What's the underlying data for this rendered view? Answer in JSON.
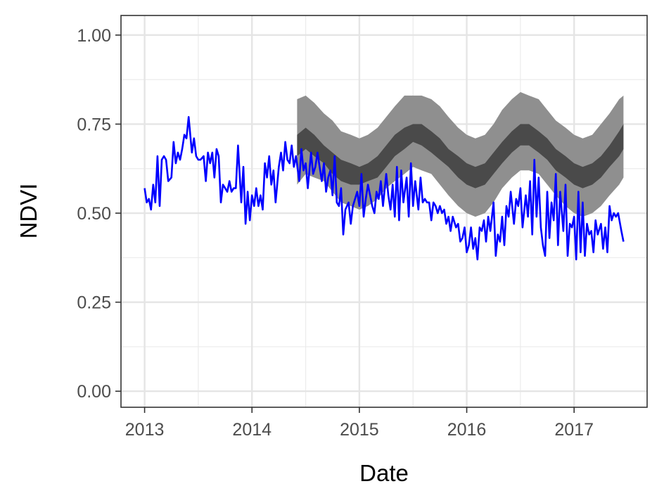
{
  "chart_data": {
    "type": "line",
    "xlabel": "Date",
    "ylabel": "NDVI",
    "xlim": [
      2012.78,
      2017.68
    ],
    "ylim": [
      -0.045,
      1.055
    ],
    "x_ticks": [
      2013,
      2014,
      2015,
      2016,
      2017
    ],
    "x_tick_labels": [
      "2013",
      "2014",
      "2015",
      "2016",
      "2017"
    ],
    "y_ticks": [
      0,
      0.25,
      0.5,
      0.75,
      1
    ],
    "y_tick_labels": [
      "0.00",
      "0.25",
      "0.50",
      "0.75",
      "1.00"
    ],
    "grid": true,
    "legend": "none",
    "series": [
      {
        "kind": "observed",
        "color": "#0000ff",
        "x": [
          2013.0,
          2013.02,
          2013.04,
          2013.06,
          2013.08,
          2013.1,
          2013.12,
          2013.14,
          2013.16,
          2013.18,
          2013.2,
          2013.22,
          2013.25,
          2013.27,
          2013.29,
          2013.31,
          2013.33,
          2013.35,
          2013.37,
          2013.39,
          2013.41,
          2013.44,
          2013.46,
          2013.48,
          2013.5,
          2013.52,
          2013.55,
          2013.57,
          2013.59,
          2013.61,
          2013.63,
          2013.65,
          2013.67,
          2013.69,
          2013.71,
          2013.73,
          2013.75,
          2013.77,
          2013.79,
          2013.81,
          2013.83,
          2013.85,
          2013.87,
          2013.9,
          2013.92,
          2013.94,
          2013.96,
          2013.98,
          2014.0,
          2014.02,
          2014.04,
          2014.06,
          2014.08,
          2014.1,
          2014.12,
          2014.14,
          2014.16,
          2014.18,
          2014.2,
          2014.22,
          2014.25,
          2014.27,
          2014.29,
          2014.31,
          2014.33,
          2014.35,
          2014.37,
          2014.39,
          2014.41,
          2014.44,
          2014.46,
          2014.48,
          2014.5,
          2014.52,
          2014.55,
          2014.57,
          2014.59,
          2014.61,
          2014.63,
          2014.65,
          2014.67,
          2014.69,
          2014.71,
          2014.73,
          2014.75,
          2014.77,
          2014.79,
          2014.81,
          2014.83,
          2014.85,
          2014.87,
          2014.9,
          2014.92,
          2014.94,
          2014.96,
          2014.98,
          2015.0,
          2015.02,
          2015.04,
          2015.06,
          2015.08,
          2015.1,
          2015.12,
          2015.14,
          2015.16,
          2015.18,
          2015.2,
          2015.22,
          2015.25,
          2015.27,
          2015.29,
          2015.31,
          2015.33,
          2015.35,
          2015.37,
          2015.39,
          2015.41,
          2015.44,
          2015.46,
          2015.48,
          2015.5,
          2015.52,
          2015.55,
          2015.57,
          2015.59,
          2015.61,
          2015.63,
          2015.65,
          2015.67,
          2015.69,
          2015.71,
          2015.73,
          2015.75,
          2015.77,
          2015.79,
          2015.81,
          2015.83,
          2015.85,
          2015.87,
          2015.9,
          2015.92,
          2015.94,
          2015.96,
          2015.98,
          2016.0,
          2016.02,
          2016.04,
          2016.06,
          2016.08,
          2016.1,
          2016.12,
          2016.14,
          2016.16,
          2016.18,
          2016.2,
          2016.22,
          2016.25,
          2016.27,
          2016.29,
          2016.31,
          2016.33,
          2016.35,
          2016.37,
          2016.39,
          2016.41,
          2016.44,
          2016.46,
          2016.48,
          2016.5,
          2016.52,
          2016.55,
          2016.57,
          2016.59,
          2016.61,
          2016.63,
          2016.65,
          2016.67,
          2016.69,
          2016.71,
          2016.73,
          2016.75,
          2016.77,
          2016.79,
          2016.81,
          2016.83,
          2016.85,
          2016.87,
          2016.9,
          2016.92,
          2016.94,
          2016.96,
          2016.98,
          2017.0,
          2017.02,
          2017.04,
          2017.06,
          2017.08,
          2017.1,
          2017.12,
          2017.14,
          2017.16,
          2017.18,
          2017.2,
          2017.22,
          2017.25,
          2017.27,
          2017.29,
          2017.31,
          2017.33,
          2017.35,
          2017.37,
          2017.39,
          2017.41,
          2017.44,
          2017.46
        ],
        "y": [
          0.57,
          0.53,
          0.54,
          0.51,
          0.58,
          0.53,
          0.66,
          0.52,
          0.65,
          0.66,
          0.65,
          0.59,
          0.6,
          0.7,
          0.64,
          0.67,
          0.65,
          0.68,
          0.72,
          0.71,
          0.77,
          0.67,
          0.71,
          0.66,
          0.65,
          0.65,
          0.66,
          0.59,
          0.67,
          0.64,
          0.67,
          0.6,
          0.68,
          0.66,
          0.53,
          0.58,
          0.57,
          0.56,
          0.59,
          0.56,
          0.57,
          0.57,
          0.69,
          0.53,
          0.63,
          0.47,
          0.56,
          0.48,
          0.55,
          0.52,
          0.57,
          0.52,
          0.55,
          0.51,
          0.64,
          0.6,
          0.66,
          0.58,
          0.62,
          0.53,
          0.63,
          0.67,
          0.62,
          0.7,
          0.65,
          0.64,
          0.69,
          0.63,
          0.66,
          0.59,
          0.68,
          0.62,
          0.64,
          0.57,
          0.67,
          0.61,
          0.63,
          0.67,
          0.63,
          0.59,
          0.64,
          0.56,
          0.6,
          0.62,
          0.55,
          0.66,
          0.53,
          0.52,
          0.57,
          0.44,
          0.51,
          0.53,
          0.47,
          0.52,
          0.54,
          0.56,
          0.52,
          0.61,
          0.49,
          0.54,
          0.58,
          0.55,
          0.52,
          0.5,
          0.56,
          0.54,
          0.59,
          0.52,
          0.61,
          0.55,
          0.51,
          0.58,
          0.49,
          0.63,
          0.48,
          0.62,
          0.53,
          0.6,
          0.49,
          0.64,
          0.52,
          0.59,
          0.51,
          0.6,
          0.53,
          0.54,
          0.53,
          0.53,
          0.48,
          0.53,
          0.52,
          0.5,
          0.52,
          0.5,
          0.51,
          0.47,
          0.49,
          0.45,
          0.49,
          0.46,
          0.47,
          0.42,
          0.43,
          0.46,
          0.39,
          0.41,
          0.46,
          0.4,
          0.43,
          0.37,
          0.46,
          0.45,
          0.48,
          0.42,
          0.49,
          0.45,
          0.53,
          0.38,
          0.44,
          0.42,
          0.49,
          0.41,
          0.52,
          0.49,
          0.56,
          0.47,
          0.54,
          0.52,
          0.57,
          0.46,
          0.55,
          0.49,
          0.59,
          0.44,
          0.65,
          0.49,
          0.6,
          0.46,
          0.41,
          0.38,
          0.56,
          0.43,
          0.53,
          0.48,
          0.61,
          0.41,
          0.56,
          0.45,
          0.58,
          0.38,
          0.47,
          0.46,
          0.49,
          0.37,
          0.56,
          0.39,
          0.53,
          0.38,
          0.47,
          0.44,
          0.45,
          0.39,
          0.48,
          0.44,
          0.47,
          0.4,
          0.46,
          0.39,
          0.52,
          0.48,
          0.5,
          0.49,
          0.5,
          0.45,
          0.42
        ]
      },
      {
        "kind": "forecast-band-outer",
        "color": "#8f8f8f",
        "x": [
          2014.42,
          2014.5,
          2014.58,
          2014.67,
          2014.75,
          2014.83,
          2014.92,
          2015.0,
          2015.08,
          2015.17,
          2015.25,
          2015.33,
          2015.42,
          2015.5,
          2015.58,
          2015.67,
          2015.75,
          2015.83,
          2015.92,
          2016.0,
          2016.08,
          2016.17,
          2016.25,
          2016.33,
          2016.42,
          2016.5,
          2016.58,
          2016.67,
          2016.75,
          2016.83,
          2016.92,
          2017.0,
          2017.08,
          2017.17,
          2017.25,
          2017.33,
          2017.42,
          2017.46
        ],
        "upper": [
          0.82,
          0.83,
          0.81,
          0.78,
          0.76,
          0.73,
          0.72,
          0.71,
          0.72,
          0.74,
          0.77,
          0.8,
          0.83,
          0.83,
          0.83,
          0.82,
          0.8,
          0.77,
          0.74,
          0.72,
          0.71,
          0.72,
          0.75,
          0.79,
          0.82,
          0.84,
          0.83,
          0.82,
          0.79,
          0.76,
          0.74,
          0.72,
          0.71,
          0.72,
          0.75,
          0.78,
          0.82,
          0.83
        ],
        "lower": [
          0.58,
          0.61,
          0.6,
          0.59,
          0.56,
          0.53,
          0.52,
          0.51,
          0.52,
          0.54,
          0.57,
          0.59,
          0.61,
          0.63,
          0.62,
          0.61,
          0.58,
          0.55,
          0.52,
          0.5,
          0.49,
          0.5,
          0.53,
          0.57,
          0.6,
          0.62,
          0.62,
          0.61,
          0.58,
          0.55,
          0.52,
          0.5,
          0.49,
          0.5,
          0.52,
          0.55,
          0.58,
          0.6
        ]
      },
      {
        "kind": "forecast-band-inner",
        "color": "#4a4a4a",
        "x": [
          2014.42,
          2014.5,
          2014.58,
          2014.67,
          2014.75,
          2014.83,
          2014.92,
          2015.0,
          2015.08,
          2015.17,
          2015.25,
          2015.33,
          2015.42,
          2015.5,
          2015.58,
          2015.67,
          2015.75,
          2015.83,
          2015.92,
          2016.0,
          2016.08,
          2016.17,
          2016.25,
          2016.33,
          2016.42,
          2016.5,
          2016.58,
          2016.67,
          2016.75,
          2016.83,
          2016.92,
          2017.0,
          2017.08,
          2017.17,
          2017.25,
          2017.33,
          2017.42,
          2017.46
        ],
        "upper": [
          0.72,
          0.74,
          0.72,
          0.69,
          0.67,
          0.65,
          0.64,
          0.63,
          0.64,
          0.66,
          0.69,
          0.72,
          0.74,
          0.75,
          0.75,
          0.73,
          0.71,
          0.68,
          0.66,
          0.64,
          0.63,
          0.64,
          0.67,
          0.7,
          0.73,
          0.75,
          0.75,
          0.73,
          0.71,
          0.68,
          0.66,
          0.64,
          0.63,
          0.64,
          0.66,
          0.69,
          0.73,
          0.75
        ],
        "lower": [
          0.66,
          0.68,
          0.66,
          0.64,
          0.61,
          0.59,
          0.58,
          0.58,
          0.59,
          0.6,
          0.63,
          0.66,
          0.68,
          0.7,
          0.69,
          0.67,
          0.65,
          0.63,
          0.6,
          0.58,
          0.57,
          0.58,
          0.61,
          0.64,
          0.67,
          0.69,
          0.69,
          0.67,
          0.65,
          0.62,
          0.6,
          0.58,
          0.57,
          0.58,
          0.6,
          0.63,
          0.66,
          0.68
        ]
      }
    ]
  }
}
